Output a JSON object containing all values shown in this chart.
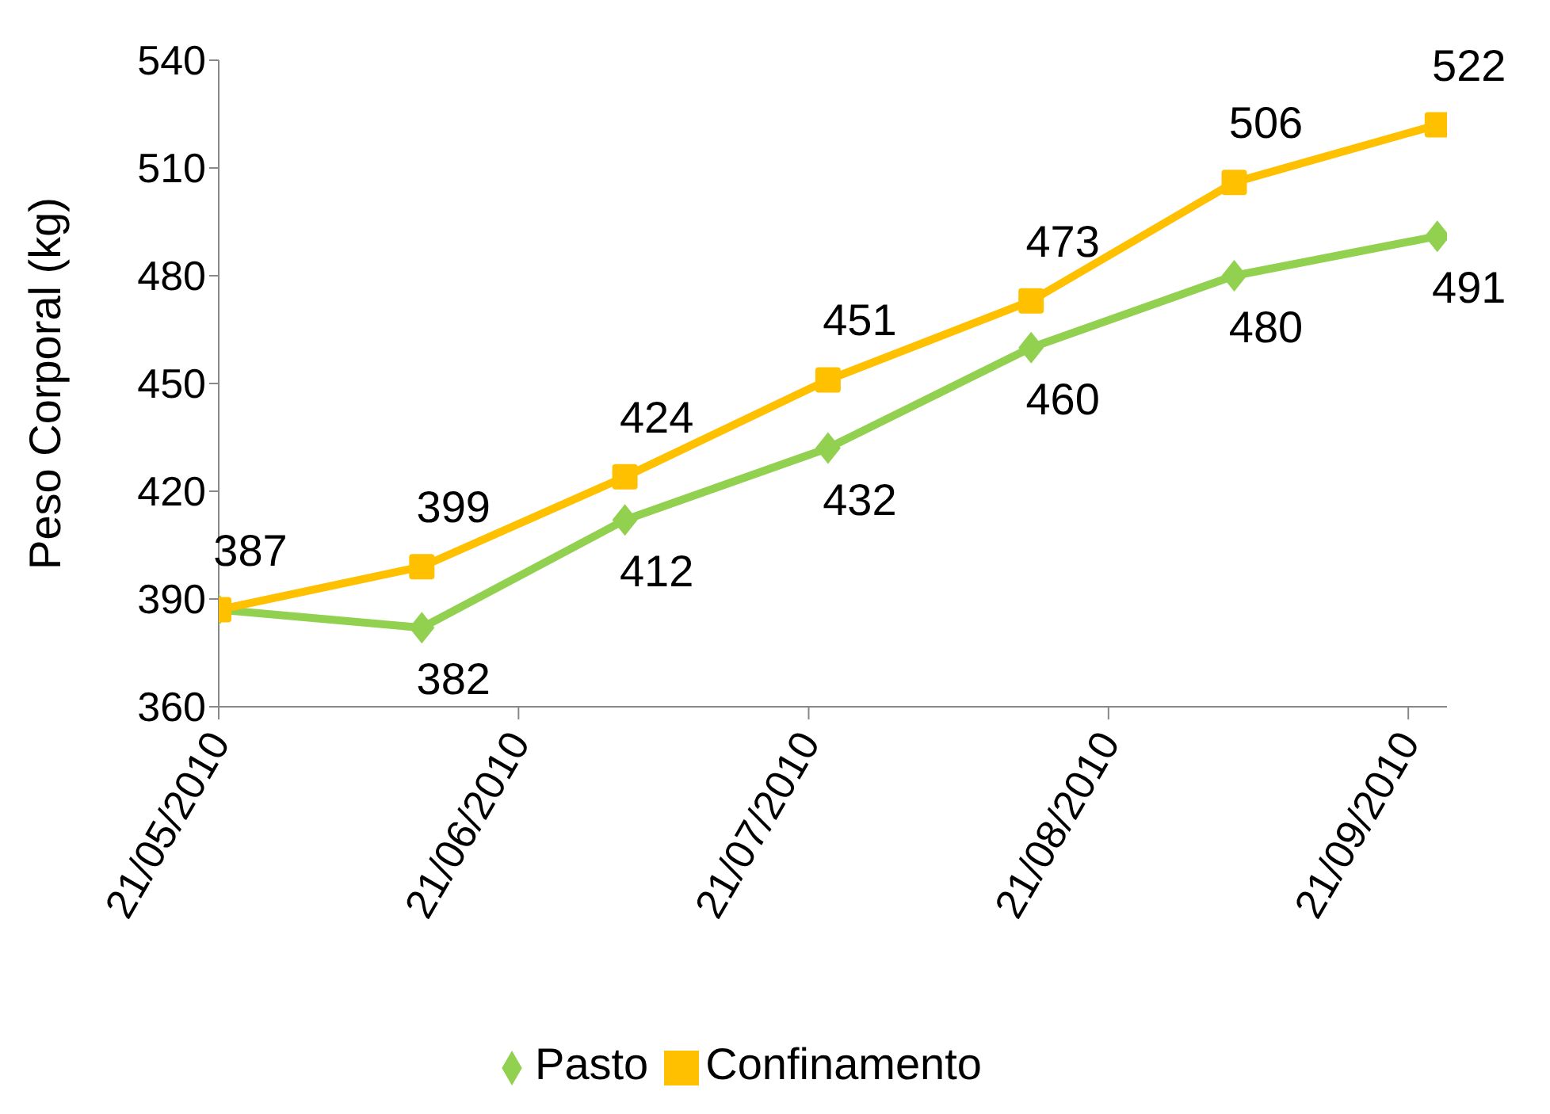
{
  "chart_data": {
    "type": "line",
    "ylabel": "Peso Corporal (kg)",
    "x": [
      "2010-05-21",
      "2010-06-11",
      "2010-07-02",
      "2010-07-23",
      "2010-08-13",
      "2010-09-03",
      "2010-09-24"
    ],
    "series": [
      {
        "name": "Pasto",
        "color": "#92d050",
        "marker": "diamond",
        "values": [
          387,
          382,
          412,
          432,
          460,
          480,
          491
        ],
        "value_labels": [
          null,
          "382",
          "412",
          "432",
          "460",
          "480",
          "491"
        ]
      },
      {
        "name": "Confinamento",
        "color": "#ffc000",
        "marker": "square",
        "values": [
          387,
          399,
          424,
          451,
          473,
          506,
          522
        ],
        "value_labels": [
          "387",
          "399",
          "424",
          "451",
          "473",
          "506",
          "522"
        ]
      }
    ],
    "xlim": [
      "2010-05-21",
      "2010-09-25"
    ],
    "xticks": [
      {
        "value": "2010-05-21",
        "label": "21/05/2010"
      },
      {
        "value": "2010-06-21",
        "label": "21/06/2010"
      },
      {
        "value": "2010-07-21",
        "label": "21/07/2010"
      },
      {
        "value": "2010-08-21",
        "label": "21/08/2010"
      },
      {
        "value": "2010-09-21",
        "label": "21/09/2010"
      }
    ],
    "ylim": [
      360,
      540
    ],
    "yticks": [
      360,
      390,
      420,
      450,
      480,
      510,
      540
    ],
    "grid": false,
    "legend": "bottom"
  }
}
